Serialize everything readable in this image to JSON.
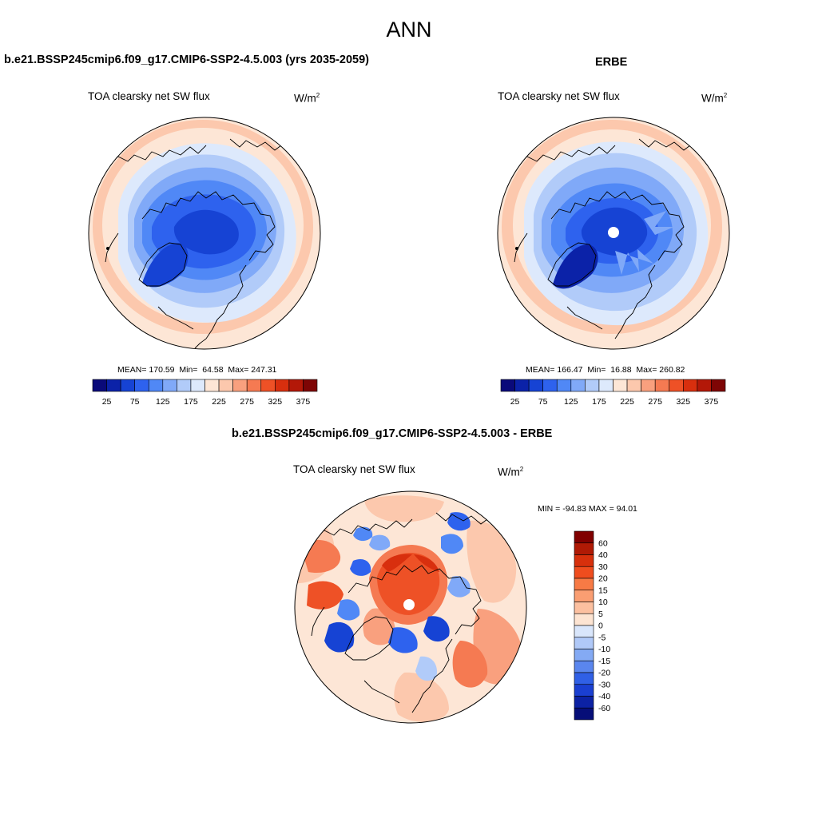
{
  "title": "ANN",
  "panels": {
    "model": {
      "heading": "b.e21.BSSP245cmip6.f09_g17.CMIP6-SSP2-4.5.003 (yrs 2035-2059)",
      "variable": "TOA clearsky net SW flux",
      "units": "W/m",
      "units_sup": "2",
      "stats_mean_label": "MEAN=",
      "stats_mean": "170.59",
      "stats_min_label": "Min=",
      "stats_min": "64.58",
      "stats_max_label": "Max=",
      "stats_max": "247.31"
    },
    "obs": {
      "heading": "ERBE",
      "variable": "TOA clearsky net SW flux",
      "units": "W/m",
      "units_sup": "2",
      "stats_mean_label": "MEAN=",
      "stats_mean": "166.47",
      "stats_min_label": "Min=",
      "stats_min": "16.88",
      "stats_max_label": "Max=",
      "stats_max": "260.82"
    },
    "diff": {
      "heading": "b.e21.BSSP245cmip6.f09_g17.CMIP6-SSP2-4.5.003 - ERBE",
      "variable": "TOA clearsky net SW flux",
      "units": "W/m",
      "units_sup": "2",
      "minmax": "MIN = -94.83 MAX =  94.01"
    }
  },
  "colorbars": {
    "abs": {
      "orientation": "horizontal",
      "ticks": [
        "25",
        "75",
        "125",
        "175",
        "225",
        "275",
        "325",
        "375"
      ],
      "colors": [
        "#0a0a7a",
        "#0b22a8",
        "#1643d4",
        "#2e62ee",
        "#5088f6",
        "#80a9f8",
        "#b1cbf9",
        "#dde9fc",
        "#fde6d6",
        "#fcc8ad",
        "#f9a07e",
        "#f57a52",
        "#ee5126",
        "#d82f0e",
        "#b31808",
        "#7e0505"
      ]
    },
    "diff": {
      "orientation": "vertical",
      "ticks": [
        "60",
        "40",
        "30",
        "20",
        "15",
        "10",
        "5",
        "0",
        "-5",
        "-10",
        "-15",
        "-20",
        "-30",
        "-40",
        "-60"
      ],
      "colors": [
        "#800000",
        "#b01a05",
        "#d7300c",
        "#ef4d1e",
        "#f77a45",
        "#fa9e72",
        "#fcc0a0",
        "#fde4d2",
        "#d9e6fb",
        "#b0c9f8",
        "#84aaf4",
        "#5a86ee",
        "#3060e6",
        "#1a3fd1",
        "#0c22a4",
        "#060e78"
      ]
    }
  },
  "map_colors": {
    "pale_orange": "#fde6d6",
    "light_orange": "#fcc8ad",
    "salmon": "#f9a07e",
    "orange": "#f57a52",
    "red": "#ee5126",
    "dark_red": "#d82f0e",
    "pale_blue": "#dde9fc",
    "light_blue": "#b1cbf9",
    "mid_blue": "#80a9f8",
    "blue": "#5088f6",
    "strong_blue": "#2e62ee",
    "deep_blue": "#1643d4",
    "navy": "#0b22a8"
  }
}
